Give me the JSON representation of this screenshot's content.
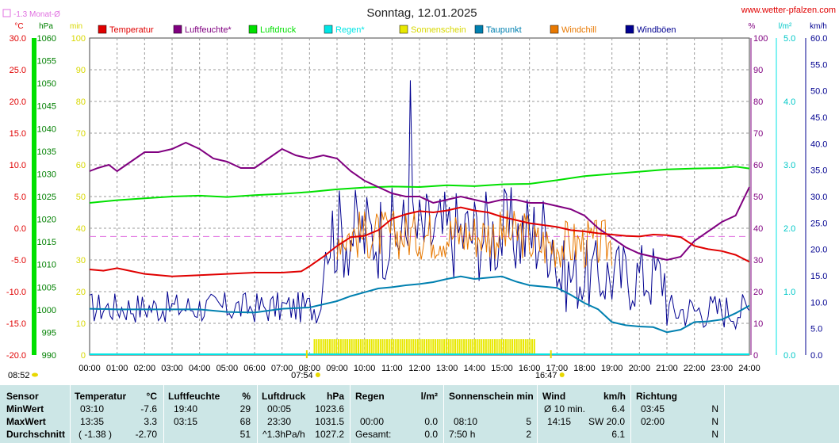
{
  "title": "Sonntag, 12.01.2025",
  "site": "www.wetter-pfalzen.com",
  "monthly_avg_label": "-1.3 Monat-Ø",
  "colors": {
    "temp": "#e00000",
    "humidity": "#800080",
    "pressure": "#00e000",
    "rain": "#00e5e5",
    "sun": "#e8e800",
    "dewpoint": "#0080b0",
    "windchill": "#e87800",
    "gust": "#000090",
    "avgline": "#e070e0",
    "grid": "#9a9a9a"
  },
  "chart_data": {
    "type": "line",
    "title": "Sonntag, 12.01.2025",
    "legend": [
      {
        "key": "temp",
        "label": "Temperatur"
      },
      {
        "key": "humidity",
        "label": "Luftfeuchte*"
      },
      {
        "key": "pressure",
        "label": "Luftdruck"
      },
      {
        "key": "rain",
        "label": "Regen*"
      },
      {
        "key": "sun",
        "label": "Sonnenschein"
      },
      {
        "key": "dewpoint",
        "label": "Taupunkt"
      },
      {
        "key": "windchill",
        "label": "Windchill"
      },
      {
        "key": "gust",
        "label": "Windböen"
      }
    ],
    "axes": [
      {
        "key": "temp",
        "unit": "°C",
        "min": -20,
        "max": 30,
        "ticks": [
          "-20.0",
          "-15.0",
          "-10.0",
          "-5.0",
          "0.0",
          "5.0",
          "10.0",
          "15.0",
          "20.0",
          "25.0",
          "30.0"
        ]
      },
      {
        "key": "pressure",
        "unit": "hPa",
        "min": 990,
        "max": 1060,
        "ticks": [
          "990",
          "995",
          "1000",
          "1005",
          "1010",
          "1015",
          "1020",
          "1025",
          "1030",
          "1035",
          "1040",
          "1045",
          "1050",
          "1055",
          "1060"
        ]
      },
      {
        "key": "sun",
        "unit": "min",
        "min": 0,
        "max": 100,
        "ticks": [
          "0",
          "10",
          "20",
          "30",
          "40",
          "50",
          "60",
          "70",
          "80",
          "90",
          "100"
        ]
      },
      {
        "key": "humidity",
        "unit": "%",
        "min": 0,
        "max": 100,
        "ticks": [
          "0",
          "10",
          "20",
          "30",
          "40",
          "50",
          "60",
          "70",
          "80",
          "90",
          "100"
        ]
      },
      {
        "key": "rain",
        "unit": "l/m²",
        "min": 0,
        "max": 5,
        "ticks": [
          "0.0",
          "1.0",
          "2.0",
          "3.0",
          "4.0",
          "5.0"
        ]
      },
      {
        "key": "gust",
        "unit": "km/h",
        "min": 0,
        "max": 60,
        "ticks": [
          "0.0",
          "5.0",
          "10.0",
          "15.0",
          "20.0",
          "25.0",
          "30.0",
          "35.0",
          "40.0",
          "45.0",
          "50.0",
          "55.0",
          "60.0"
        ]
      }
    ],
    "x_ticks": [
      "00:00",
      "01:00",
      "02:00",
      "03:00",
      "04:00",
      "05:00",
      "06:00",
      "07:00",
      "08:00",
      "09:00",
      "10:00",
      "11:00",
      "12:00",
      "13:00",
      "14:00",
      "15:00",
      "16:00",
      "17:00",
      "18:00",
      "19:00",
      "20:00",
      "21:00",
      "22:00",
      "23:00",
      "24:00"
    ],
    "sunrise": {
      "label": "07:54",
      "hour": 7.9
    },
    "sunset": {
      "label": "16:47",
      "hour": 16.78
    },
    "moon_time": "08:52",
    "monthly_avg_temp": -1.3,
    "sunshine_period": [
      8.15,
      16.2
    ],
    "series": {
      "temp": [
        [
          0,
          -6.5
        ],
        [
          0.5,
          -6.7
        ],
        [
          1,
          -6.3
        ],
        [
          2,
          -7.2
        ],
        [
          3,
          -7.6
        ],
        [
          4,
          -7.4
        ],
        [
          5,
          -7.2
        ],
        [
          6,
          -7.0
        ],
        [
          7,
          -7.0
        ],
        [
          7.7,
          -6.8
        ],
        [
          8,
          -6.0
        ],
        [
          8.5,
          -4.5
        ],
        [
          9,
          -2.8
        ],
        [
          9.5,
          -1.4
        ],
        [
          10,
          -1.2
        ],
        [
          10.5,
          -0.3
        ],
        [
          11,
          1.5
        ],
        [
          11.5,
          2.2
        ],
        [
          12,
          2.7
        ],
        [
          12.5,
          2.5
        ],
        [
          13,
          2.8
        ],
        [
          13.5,
          3.3
        ],
        [
          14,
          2.8
        ],
        [
          14.5,
          2.5
        ],
        [
          15,
          1.8
        ],
        [
          15.5,
          1.3
        ],
        [
          16,
          0.8
        ],
        [
          16.5,
          0.5
        ],
        [
          17,
          0.2
        ],
        [
          17.5,
          -0.3
        ],
        [
          18,
          -0.5
        ],
        [
          18.5,
          -0.8
        ],
        [
          19,
          -1.0
        ],
        [
          19.5,
          -1.2
        ],
        [
          20,
          -1.3
        ],
        [
          20.5,
          -1.0
        ],
        [
          21,
          -1.1
        ],
        [
          21.5,
          -1.4
        ],
        [
          22,
          -2.8
        ],
        [
          22.5,
          -3.3
        ],
        [
          23,
          -3.6
        ],
        [
          23.5,
          -4.2
        ],
        [
          24,
          -5.3
        ]
      ],
      "humidity": [
        [
          0,
          58
        ],
        [
          0.3,
          59
        ],
        [
          0.7,
          60
        ],
        [
          1,
          58
        ],
        [
          1.5,
          61
        ],
        [
          2,
          64
        ],
        [
          2.5,
          64
        ],
        [
          3,
          65
        ],
        [
          3.5,
          67
        ],
        [
          4,
          65
        ],
        [
          4.5,
          62
        ],
        [
          5,
          61
        ],
        [
          5.5,
          59
        ],
        [
          6,
          59
        ],
        [
          6.5,
          62
        ],
        [
          7,
          65
        ],
        [
          7.5,
          63
        ],
        [
          8,
          62
        ],
        [
          8.5,
          63
        ],
        [
          9,
          62
        ],
        [
          9.5,
          58
        ],
        [
          10,
          55
        ],
        [
          10.5,
          53
        ],
        [
          11,
          51
        ],
        [
          11.5,
          50
        ],
        [
          12,
          50
        ],
        [
          12.5,
          48
        ],
        [
          13,
          49
        ],
        [
          13.5,
          50
        ],
        [
          14,
          49
        ],
        [
          14.5,
          48
        ],
        [
          15,
          49
        ],
        [
          15.5,
          49
        ],
        [
          16,
          48
        ],
        [
          16.5,
          48
        ],
        [
          17,
          47
        ],
        [
          17.5,
          46
        ],
        [
          18,
          44
        ],
        [
          18.5,
          40
        ],
        [
          19,
          37
        ],
        [
          19.5,
          34
        ],
        [
          20,
          32
        ],
        [
          20.5,
          31
        ],
        [
          21,
          30
        ],
        [
          21.5,
          31
        ],
        [
          22,
          36
        ],
        [
          22.5,
          39
        ],
        [
          23,
          42
        ],
        [
          23.5,
          44
        ],
        [
          24,
          53
        ]
      ],
      "pressure": [
        [
          0,
          1023.6
        ],
        [
          1,
          1024.2
        ],
        [
          2,
          1024.6
        ],
        [
          3,
          1025.0
        ],
        [
          4,
          1025.2
        ],
        [
          5,
          1024.9
        ],
        [
          6,
          1025.3
        ],
        [
          7,
          1025.6
        ],
        [
          8,
          1026.0
        ],
        [
          9,
          1026.6
        ],
        [
          10,
          1027.0
        ],
        [
          11,
          1027.2
        ],
        [
          12,
          1027.1
        ],
        [
          13,
          1027.5
        ],
        [
          14,
          1027.3
        ],
        [
          15,
          1027.7
        ],
        [
          16,
          1027.8
        ],
        [
          17,
          1028.6
        ],
        [
          18,
          1029.5
        ],
        [
          19,
          1030.0
        ],
        [
          20,
          1030.5
        ],
        [
          21,
          1031.0
        ],
        [
          22,
          1031.2
        ],
        [
          23,
          1031.3
        ],
        [
          23.5,
          1031.6
        ],
        [
          24,
          1031.2
        ]
      ],
      "dewpoint": [
        [
          0,
          -12.7
        ],
        [
          1,
          -12.8
        ],
        [
          2,
          -12.8
        ],
        [
          3,
          -12.8
        ],
        [
          4,
          -12.8
        ],
        [
          5,
          -13.2
        ],
        [
          6,
          -13.3
        ],
        [
          7,
          -12.7
        ],
        [
          8,
          -12.5
        ],
        [
          8.5,
          -12.0
        ],
        [
          9,
          -11.5
        ],
        [
          9.5,
          -10.7
        ],
        [
          10,
          -10.1
        ],
        [
          10.5,
          -9.5
        ],
        [
          11,
          -9.3
        ],
        [
          11.5,
          -9.0
        ],
        [
          12,
          -8.8
        ],
        [
          12.5,
          -8.5
        ],
        [
          13,
          -8.0
        ],
        [
          13.5,
          -7.6
        ],
        [
          14,
          -8.0
        ],
        [
          14.5,
          -7.8
        ],
        [
          15,
          -7.6
        ],
        [
          15.5,
          -8.4
        ],
        [
          16,
          -9.0
        ],
        [
          16.5,
          -9.2
        ],
        [
          17,
          -9.4
        ],
        [
          17.5,
          -10.5
        ],
        [
          18,
          -11.8
        ],
        [
          18.5,
          -12.8
        ],
        [
          19,
          -14.8
        ],
        [
          19.5,
          -15.3
        ],
        [
          20,
          -15.5
        ],
        [
          20.5,
          -15.6
        ],
        [
          21,
          -16.4
        ],
        [
          21.5,
          -16.0
        ],
        [
          22,
          -14.8
        ],
        [
          22.5,
          -14.7
        ],
        [
          23,
          -14.4
        ],
        [
          23.5,
          -13.4
        ],
        [
          24,
          -12.2
        ]
      ]
    }
  },
  "table": {
    "headers": {
      "sensor": "Sensor",
      "temp": "Temperatur",
      "temp_unit": "°C",
      "hum": "Luftfeuchte",
      "hum_unit": "%",
      "press": "Luftdruck",
      "press_unit": "hPa",
      "rain": "Regen",
      "rain_unit": "l/m²",
      "sun": "Sonnenschein min",
      "wind": "Wind",
      "wind_unit": "km/h",
      "dir": "Richtung"
    },
    "rows": [
      {
        "label": "MinWert",
        "temp_t": "03:10",
        "temp_v": "-7.6",
        "hum_t": "19:40",
        "hum_v": "29",
        "press_t": "00:05",
        "press_v": "1023.6",
        "rain_t": "",
        "rain_v": "",
        "sun_t": "",
        "sun_v": "",
        "wind_t": "Ø 10 min.",
        "wind_v": "6.4",
        "dir_t": "03:45",
        "dir_v": "N"
      },
      {
        "label": "MaxWert",
        "temp_t": "13:35",
        "temp_v": "3.3",
        "hum_t": "03:15",
        "hum_v": "68",
        "press_t": "23:30",
        "press_v": "1031.5",
        "rain_t": "00:00",
        "rain_v": "0.0",
        "sun_t": "08:10",
        "sun_v": "5",
        "wind_t": "14:15",
        "wind_v": "SW 20.0",
        "dir_t": "02:00",
        "dir_v": "N"
      },
      {
        "label": "Durchschnitt",
        "temp_t": "( -1.38 )",
        "temp_v": "-2.70",
        "hum_t": "",
        "hum_v": "51",
        "press_t": "^1.3hPa/h",
        "press_v": "1027.2",
        "rain_t": "Gesamt:",
        "rain_v": "0.0",
        "sun_t": "7:50 h",
        "sun_v": "2",
        "wind_t": "",
        "wind_v": "6.1",
        "dir_t": "",
        "dir_v": "N"
      }
    ]
  }
}
